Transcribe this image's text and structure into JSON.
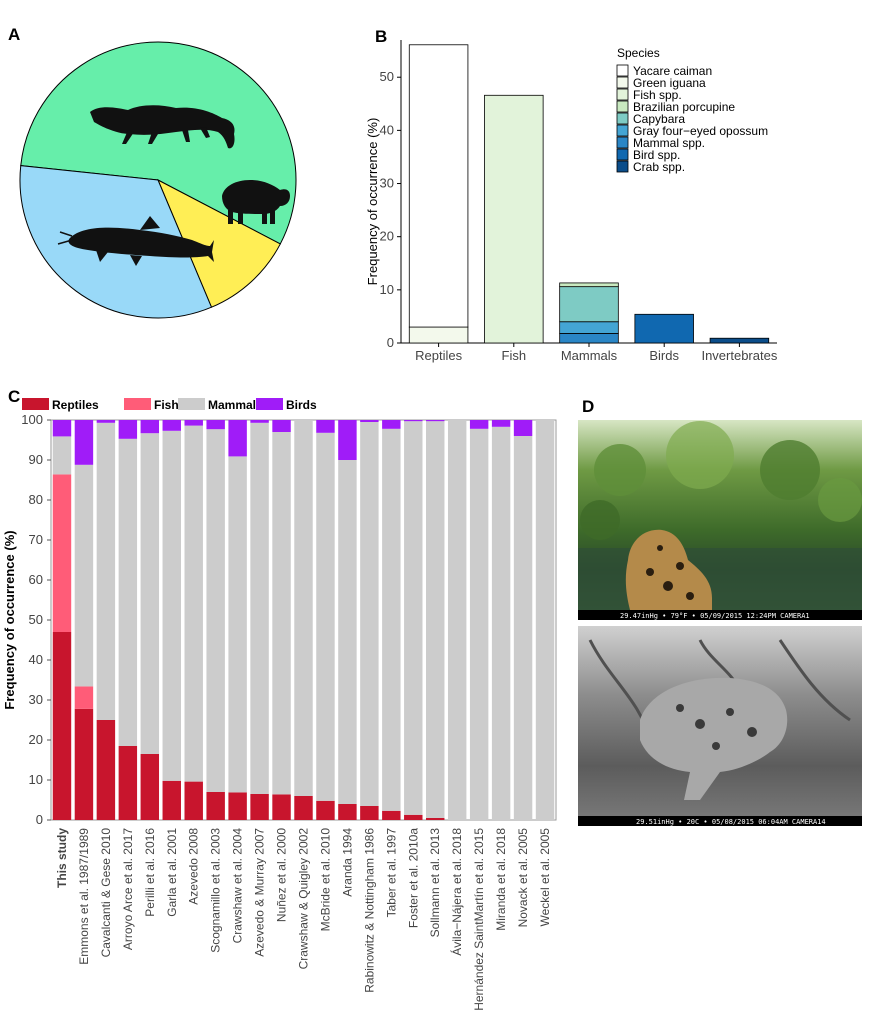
{
  "panels": {
    "a": {
      "letter": "A"
    },
    "b": {
      "letter": "B"
    },
    "c": {
      "letter": "C"
    },
    "d": {
      "letter": "D"
    }
  },
  "pie": {
    "slices": [
      {
        "name": "Reptiles",
        "value": 56,
        "color": "#66eeaa",
        "icon": "caiman-icon"
      },
      {
        "name": "Mammals",
        "value": 11,
        "color": "#ffee55",
        "icon": "capybara-icon"
      },
      {
        "name": "Fish",
        "value": 33,
        "color": "#99d9f8",
        "icon": "catfish-icon"
      }
    ]
  },
  "photos": [
    {
      "name": "jaguar-photo-day",
      "overlay": "29.47inHg • 79°F • 05/09/2015 12:24PM CAMERA1"
    },
    {
      "name": "jaguar-photo-night",
      "overlay": "29.51inHg • 20C • 05/08/2015 06:04AM CAMERA14"
    }
  ],
  "chart_data": [
    {
      "id": "B",
      "type": "bar",
      "stacked": true,
      "ylabel": "Frequency of occurrence (%)",
      "ylim": [
        0,
        57
      ],
      "yticks": [
        0,
        10,
        20,
        30,
        40,
        50
      ],
      "categories": [
        "Reptiles",
        "Fish",
        "Mammals",
        "Birds",
        "Invertebrates"
      ],
      "legend_title": "Species",
      "legend_position": "top-right",
      "species": [
        {
          "name": "Yacare caiman",
          "color": "#ffffff"
        },
        {
          "name": "Green iguana",
          "color": "#f3f9ec"
        },
        {
          "name": "Fish spp.",
          "color": "#e2f3da"
        },
        {
          "name": "Brazilian porcupine",
          "color": "#c9e9c0"
        },
        {
          "name": "Capybara",
          "color": "#7ecbc4"
        },
        {
          "name": "Gray four−eyed opossum",
          "color": "#44a5d4"
        },
        {
          "name": "Mammal spp.",
          "color": "#2a86c6"
        },
        {
          "name": "Bird spp.",
          "color": "#1068b0"
        },
        {
          "name": "Crab spp.",
          "color": "#0b4d8a"
        }
      ],
      "stacks": [
        {
          "category": "Reptiles",
          "segments": [
            {
              "species": "Green iguana",
              "value": 3.0
            },
            {
              "species": "Yacare caiman",
              "value": 53.1
            }
          ]
        },
        {
          "category": "Fish",
          "segments": [
            {
              "species": "Fish spp.",
              "value": 46.6
            }
          ]
        },
        {
          "category": "Mammals",
          "segments": [
            {
              "species": "Mammal spp.",
              "value": 1.8
            },
            {
              "species": "Gray four−eyed opossum",
              "value": 2.2
            },
            {
              "species": "Capybara",
              "value": 6.6
            },
            {
              "species": "Brazilian porcupine",
              "value": 0.7
            }
          ]
        },
        {
          "category": "Birds",
          "segments": [
            {
              "species": "Bird spp.",
              "value": 5.4
            }
          ]
        },
        {
          "category": "Invertebrates",
          "segments": [
            {
              "species": "Crab spp.",
              "value": 0.9
            }
          ]
        }
      ]
    },
    {
      "id": "C",
      "type": "bar",
      "stacked": true,
      "ylabel": "Frequency of occurrence (%)",
      "ylim": [
        0,
        100
      ],
      "yticks": [
        0,
        10,
        20,
        30,
        40,
        50,
        60,
        70,
        80,
        90,
        100
      ],
      "legend_position": "top",
      "series": [
        {
          "name": "Reptiles",
          "color": "#c8152d"
        },
        {
          "name": "Fish",
          "color": "#ff5c78"
        },
        {
          "name": "Mammals",
          "color": "#cccccc"
        },
        {
          "name": "Birds",
          "color": "#a01cf8"
        }
      ],
      "categories": [
        "This study",
        "Emmons et al. 1987/1989",
        "Cavalcanti & Gese 2010",
        "Arroyo  Arce et al. 2017",
        "Perilli et al. 2016",
        "Garla et al. 2001",
        "Azevedo 2008",
        "Scognamillo et al. 2003",
        "Crawshaw et al. 2004",
        "Azevedo & Murray 2007",
        "Nuñez et al. 2000",
        "Crawshaw & Quigley 2002",
        "McBride et al. 2010",
        "Aranda 1994",
        "Rabinowitz & Nottingham 1986",
        "Taber et al. 1997",
        "Foster et al. 2010a",
        "Sollmann et al. 2013",
        "Ávila−Nájera et al. 2018",
        "Hernández  SaintMartín et al. 2015",
        "Miranda et al. 2018",
        "Novack et al. 2005",
        "Weckel et al. 2005"
      ],
      "reptiles": [
        47,
        27.8,
        25,
        18.5,
        16.5,
        9.8,
        9.6,
        7,
        6.9,
        6.5,
        6.4,
        6,
        4.8,
        4,
        3.5,
        2.3,
        1.3,
        0.5,
        0,
        0,
        0,
        0,
        0
      ],
      "fish": [
        39.4,
        5.6,
        0,
        0,
        0,
        0,
        0,
        0,
        0,
        0,
        0,
        0,
        0,
        0,
        0,
        0,
        0,
        0,
        0,
        0,
        0,
        0,
        0
      ],
      "mammals": [
        9.5,
        55.4,
        74.3,
        76.8,
        80.2,
        87.5,
        89,
        90.7,
        84,
        92.8,
        90.6,
        94,
        92,
        86,
        96,
        95.5,
        98.4,
        99.2,
        100,
        97.8,
        98.3,
        96,
        100
      ],
      "birds": [
        4.1,
        11.2,
        0.7,
        4.7,
        3.3,
        2.7,
        1.4,
        2.3,
        9.1,
        0.7,
        3,
        0,
        3.2,
        10,
        0.5,
        2.2,
        0.3,
        0.3,
        0,
        2.2,
        1.7,
        4,
        0
      ]
    }
  ]
}
